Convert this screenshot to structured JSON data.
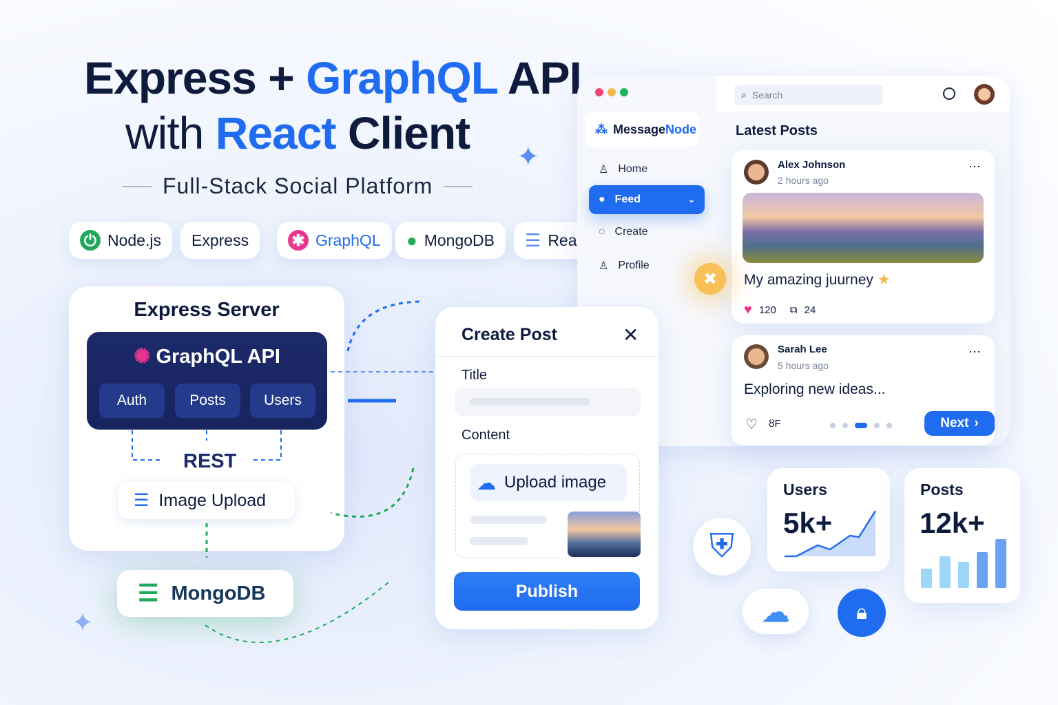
{
  "headline": {
    "line1_a": "Express + ",
    "line1_b": "GraphQL",
    "line1_c": " API",
    "line2_a": "with ",
    "line2_b": "React",
    "line2_c": " Client",
    "subtitle": "Full-Stack Social Platform"
  },
  "tech_pills": [
    "Node.js",
    "Express",
    "GraphQL",
    "MongoDB",
    "React"
  ],
  "server": {
    "title": "Express Server",
    "api": "GraphQL API",
    "chips": [
      "Auth",
      "Posts",
      "Users"
    ],
    "rest": "REST",
    "image_upload": "Image Upload",
    "mongodb": "MongoDB"
  },
  "create_post": {
    "title": "Create Post",
    "title_label": "Title",
    "content_label": "Content",
    "upload": "Upload image",
    "publish": "Publish"
  },
  "app": {
    "brand_a": "Message",
    "brand_b": "Node",
    "search_placeholder": "Search",
    "nav": [
      "Home",
      "Feed",
      "Create",
      "Profile"
    ],
    "section": "Latest Posts",
    "posts": [
      {
        "author": "Alex Johnson",
        "time": "2 hours ago",
        "caption": "My amazing juurney",
        "likes": "120",
        "comments": "24"
      },
      {
        "author": "Sarah Lee",
        "time": "5 hours ago",
        "text": "Exploring new ideas...",
        "reaction": "ȣF"
      }
    ],
    "next": "Next",
    "carousel_active": 3,
    "carousel_total": 5
  },
  "stats": {
    "users_label": "Users",
    "users_value": "5k+",
    "posts_label": "Posts",
    "posts_value": "12k+"
  },
  "colors": {
    "accent": "#1f6cf0",
    "navy": "#1b2a6b",
    "mongo": "#21a95a",
    "graphql": "#e8368f"
  }
}
